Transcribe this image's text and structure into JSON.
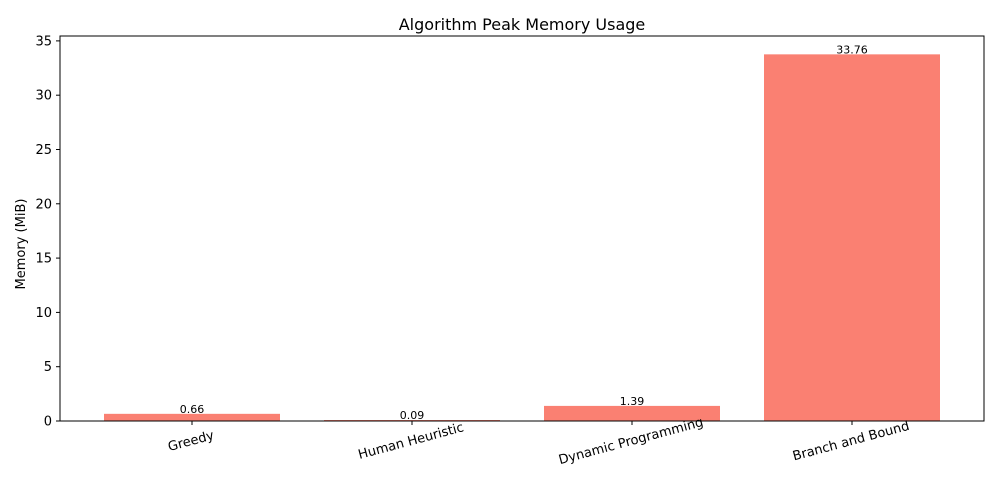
{
  "chart_data": {
    "type": "bar",
    "title": "Algorithm Peak Memory Usage",
    "xlabel": "",
    "ylabel": "Memory (MiB)",
    "categories": [
      "Greedy",
      "Human Heuristic",
      "Dynamic Programming",
      "Branch and Bound"
    ],
    "values": [
      0.66,
      0.09,
      1.39,
      33.76
    ],
    "value_labels": [
      "0.66",
      "0.09",
      "1.39",
      "33.76"
    ],
    "ylim": [
      0,
      35.45
    ],
    "yticks": [
      0,
      5,
      10,
      15,
      20,
      25,
      30,
      35
    ],
    "bar_color": "#fa8072",
    "grid": false,
    "legend": "none"
  }
}
